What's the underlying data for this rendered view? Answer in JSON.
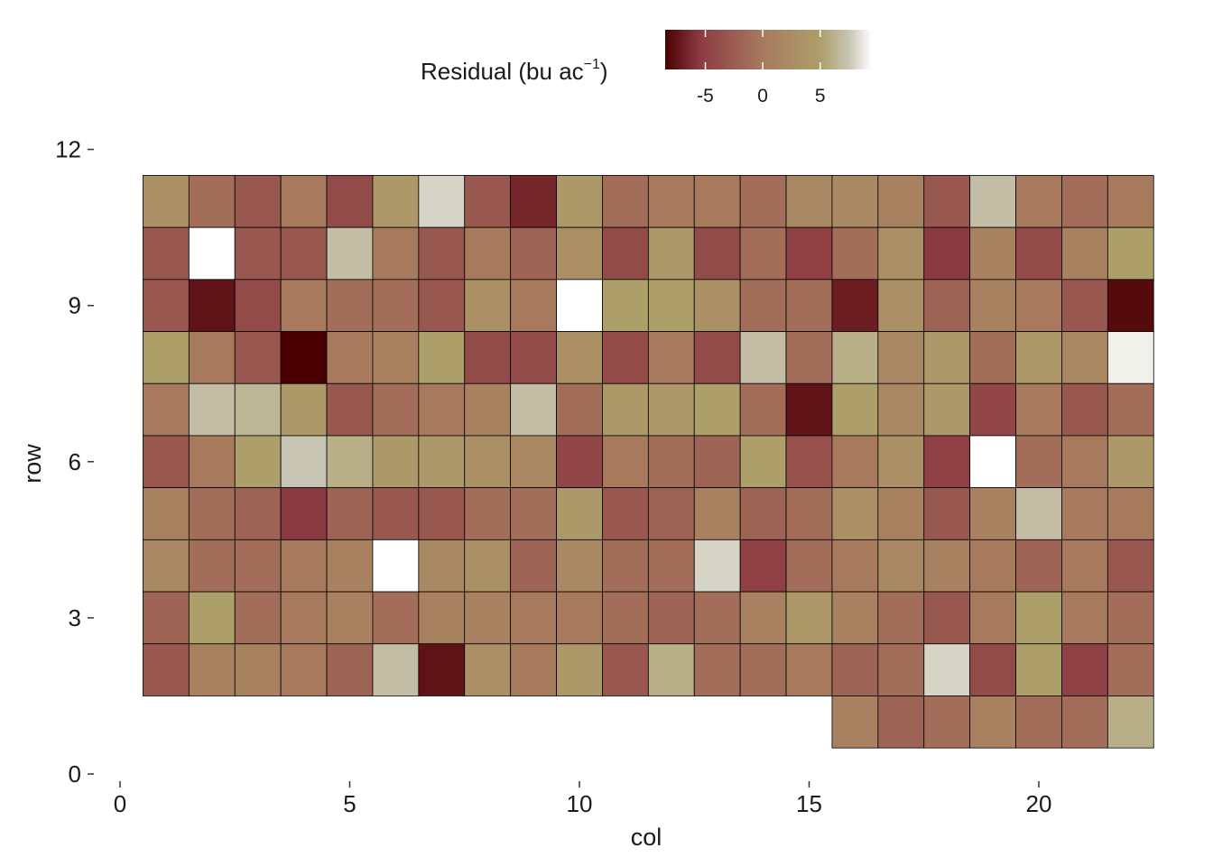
{
  "chart_data": {
    "type": "heatmap",
    "title": "",
    "xlabel": "col",
    "ylabel": "row",
    "xlim": [
      0,
      22.5
    ],
    "ylim": [
      0,
      12
    ],
    "x_ticks": [
      0,
      5,
      10,
      15,
      20
    ],
    "y_ticks": [
      0,
      3,
      6,
      9,
      12
    ],
    "grid": false,
    "legend": {
      "title_main": "Residual (bu ac",
      "title_sup": "−1",
      "title_close": ")",
      "position": "top",
      "ticks": [
        -5,
        0,
        5
      ],
      "tick_labels": [
        "-5",
        "0",
        "5"
      ],
      "range": [
        -8.5,
        9.5
      ],
      "colors": [
        "#4a0000",
        "#8c3a42",
        "#a77a5e",
        "#ad9f6a",
        "#c8c5b4",
        "#ffffff"
      ],
      "color_stops": [
        -8.5,
        -5.5,
        0,
        5,
        7.5,
        9.5
      ]
    },
    "na_color": "#ffffff",
    "cols": [
      1,
      2,
      3,
      4,
      5,
      6,
      7,
      8,
      9,
      10,
      11,
      12,
      13,
      14,
      15,
      16,
      17,
      18,
      19,
      20,
      21,
      22
    ],
    "rows": [
      {
        "row": 11,
        "start_col": 1,
        "values": [
          3,
          -1,
          -3,
          0,
          -4,
          4,
          8,
          -3,
          -6.5,
          4,
          -1,
          0,
          0,
          -1,
          2,
          2,
          1,
          -3,
          7,
          0,
          -1,
          0
        ]
      },
      {
        "row": 10,
        "start_col": 1,
        "values": [
          -3,
          null,
          -3,
          -3,
          7,
          0,
          -3,
          0,
          -2,
          3,
          -4,
          4,
          -4,
          -1,
          -5,
          -1,
          3,
          -5.5,
          1,
          -4,
          1,
          5
        ]
      },
      {
        "row": 9,
        "start_col": 1,
        "values": [
          -3,
          -7.5,
          -4,
          0,
          -1,
          -1,
          -3,
          3,
          0,
          null,
          5,
          5,
          3,
          -1,
          -1,
          -7,
          3,
          -2,
          1,
          0,
          -3,
          -8
        ]
      },
      {
        "row": 8,
        "start_col": 1,
        "values": [
          5,
          0,
          -3,
          -8.5,
          0,
          1,
          5,
          -4,
          -4,
          3,
          -4,
          0,
          -4,
          7,
          -1,
          6,
          2,
          4,
          -1,
          4,
          2,
          9
        ]
      },
      {
        "row": 7,
        "start_col": 1,
        "values": [
          0,
          7,
          6.5,
          4,
          -3,
          -1,
          0,
          1,
          7,
          -1,
          4,
          4,
          5,
          -1,
          -7.5,
          5,
          2,
          4,
          -4.5,
          0,
          -3,
          -1
        ]
      },
      {
        "row": 6,
        "start_col": 1,
        "values": [
          -3,
          0,
          5,
          7.5,
          6,
          4,
          4,
          3,
          2,
          -4.5,
          0,
          -1,
          -2,
          5,
          -3.5,
          0,
          3,
          -5,
          null,
          -1,
          0,
          4
        ]
      },
      {
        "row": 5,
        "start_col": 1,
        "values": [
          1,
          -1,
          -2,
          -5.5,
          -2,
          -3,
          -3,
          -1,
          -1,
          4,
          -3,
          -2,
          1,
          -2,
          -1,
          3,
          1,
          -3,
          1,
          7,
          0,
          0
        ]
      },
      {
        "row": 4,
        "start_col": 1,
        "values": [
          2,
          -1,
          -1,
          0,
          1,
          null,
          2,
          3,
          -2,
          2,
          -1,
          -1,
          8,
          -5,
          -1,
          0,
          2,
          1,
          0,
          -2,
          0,
          -3
        ]
      },
      {
        "row": 3,
        "start_col": 1,
        "values": [
          -2,
          5,
          -1,
          0,
          1,
          -1,
          1,
          1,
          0,
          0,
          -1,
          -2,
          -1,
          1,
          4,
          1,
          -1,
          -3,
          0,
          5,
          0,
          -1
        ]
      },
      {
        "row": 2,
        "start_col": 1,
        "values": [
          -3,
          1,
          1,
          0,
          -2,
          7,
          -7.5,
          3,
          0,
          4,
          -3,
          6,
          -1,
          -1,
          0,
          -2,
          -1,
          8,
          -4,
          5,
          -5,
          -1
        ]
      },
      {
        "row": 1,
        "start_col": 16,
        "values": [
          1,
          -2,
          -1,
          1,
          -1,
          -1,
          6
        ]
      }
    ]
  }
}
